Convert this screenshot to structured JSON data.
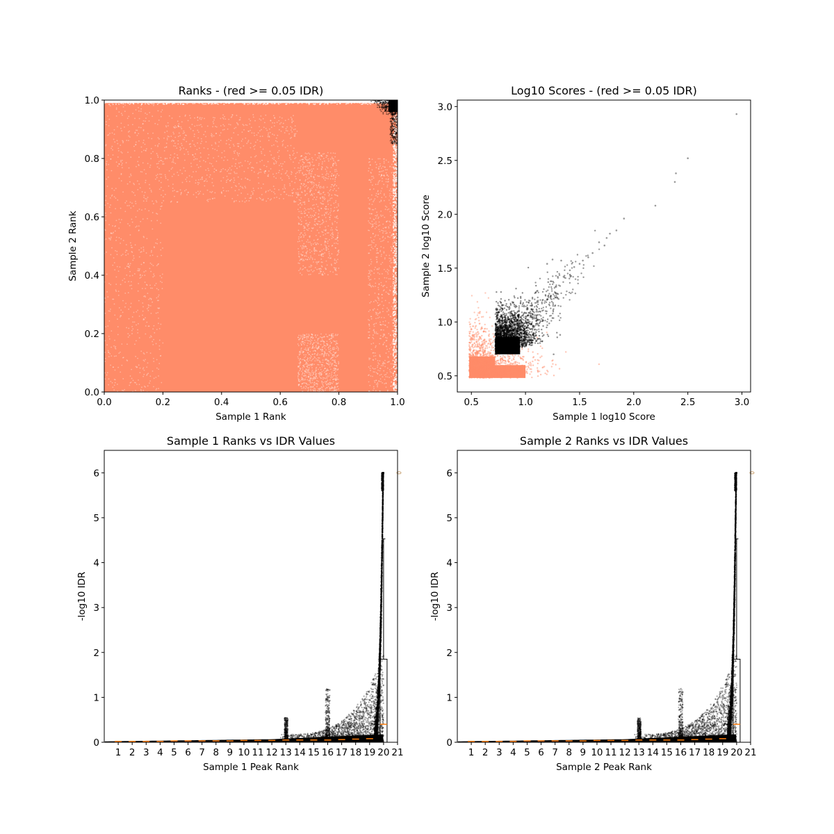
{
  "chart_data": [
    {
      "type": "scatter",
      "title": "Ranks - (red >= 0.05 IDR)",
      "xlabel": "Sample 1 Rank",
      "ylabel": "Sample 2 Rank",
      "xlim": [
        0,
        1
      ],
      "ylim": [
        0,
        1
      ],
      "xticks": [
        "0.0",
        "0.2",
        "0.4",
        "0.6",
        "0.8",
        "1.0"
      ],
      "yticks": [
        "0.0",
        "0.2",
        "0.4",
        "0.6",
        "0.8",
        "1.0"
      ],
      "grid": false,
      "colors": {
        "low_idr": "#000000",
        "high_idr": "#ff8c69"
      },
      "description_points": {
        "high_idr_region": [
          [
            0,
            0
          ],
          [
            1,
            0.99
          ]
        ],
        "low_idr_corner": [
          [
            0.95,
            0.95
          ],
          [
            1,
            1
          ]
        ]
      }
    },
    {
      "type": "scatter",
      "title": "Log10 Scores - (red >= 0.05 IDR)",
      "xlabel": "Sample 1 log10 Score",
      "ylabel": "Sample 2 log10 Score",
      "xlim": [
        0.37,
        3.08
      ],
      "ylim": [
        0.35,
        3.06
      ],
      "xticks": [
        "0.5",
        "1.0",
        "1.5",
        "2.0",
        "2.5",
        "3.0"
      ],
      "yticks": [
        "0.5",
        "1.0",
        "1.5",
        "2.0",
        "2.5",
        "3.0"
      ],
      "grid": false,
      "colors": {
        "low_idr": "#000000",
        "high_idr": "#ff8c69"
      },
      "outlier_points": [
        [
          2.95,
          2.93
        ],
        [
          2.5,
          2.52
        ],
        [
          2.39,
          2.38
        ],
        [
          2.38,
          2.3
        ],
        [
          2.2,
          2.08
        ],
        [
          1.91,
          1.96
        ],
        [
          1.84,
          1.85
        ],
        [
          1.78,
          1.82
        ],
        [
          1.75,
          1.78
        ],
        [
          1.73,
          1.71
        ],
        [
          1.68,
          1.74
        ],
        [
          1.62,
          1.64
        ],
        [
          1.58,
          1.6
        ],
        [
          1.53,
          1.57
        ],
        [
          1.5,
          1.54
        ],
        [
          1.45,
          1.51
        ],
        [
          1.41,
          1.48
        ],
        [
          1.36,
          1.43
        ],
        [
          1.3,
          1.41
        ],
        [
          1.21,
          1.37
        ],
        [
          1.2,
          1.54
        ],
        [
          1.25,
          1.58
        ],
        [
          1.33,
          1.57
        ],
        [
          1.32,
          0.88
        ],
        [
          1.26,
          0.7
        ]
      ]
    },
    {
      "type": "scatter",
      "title": "Sample 1 Ranks vs IDR Values",
      "xlabel": "Sample 1 Peak Rank",
      "ylabel": "-log10 IDR",
      "xlim": [
        0,
        21
      ],
      "ylim": [
        0,
        6.5
      ],
      "xticks": [
        "1",
        "2",
        "3",
        "4",
        "5",
        "6",
        "7",
        "8",
        "9",
        "10",
        "11",
        "12",
        "13",
        "14",
        "15",
        "16",
        "17",
        "18",
        "19",
        "20",
        "21"
      ],
      "yticks": [
        "0",
        "1",
        "2",
        "3",
        "4",
        "5",
        "6"
      ],
      "grid": false,
      "boxplot": {
        "x": 20,
        "q1": 0,
        "median": 0.4,
        "q3": 1.85,
        "whisker_high": 4.53,
        "flier": 6
      },
      "medians_by_rank": [
        0.02,
        0.02,
        0.02,
        0.02,
        0.03,
        0.03,
        0.03,
        0.03,
        0.03,
        0.04,
        0.04,
        0.04,
        0.05,
        0.05,
        0.05,
        0.05,
        0.06,
        0.07,
        0.08,
        0.4
      ]
    },
    {
      "type": "scatter",
      "title": "Sample 2 Ranks vs IDR Values",
      "xlabel": "Sample 2 Peak Rank",
      "ylabel": "-log10 IDR",
      "xlim": [
        0,
        21
      ],
      "ylim": [
        0,
        6.5
      ],
      "xticks": [
        "1",
        "2",
        "3",
        "4",
        "5",
        "6",
        "7",
        "8",
        "9",
        "10",
        "11",
        "12",
        "13",
        "14",
        "15",
        "16",
        "17",
        "18",
        "19",
        "20",
        "21"
      ],
      "yticks": [
        "0",
        "1",
        "2",
        "3",
        "4",
        "5",
        "6"
      ],
      "grid": false,
      "boxplot": {
        "x": 20,
        "q1": 0,
        "median": 0.4,
        "q3": 1.85,
        "whisker_high": 4.53,
        "flier": 6
      },
      "medians_by_rank": [
        0.02,
        0.02,
        0.02,
        0.02,
        0.03,
        0.03,
        0.03,
        0.03,
        0.03,
        0.04,
        0.04,
        0.04,
        0.05,
        0.05,
        0.05,
        0.05,
        0.06,
        0.07,
        0.08,
        0.4
      ]
    }
  ]
}
